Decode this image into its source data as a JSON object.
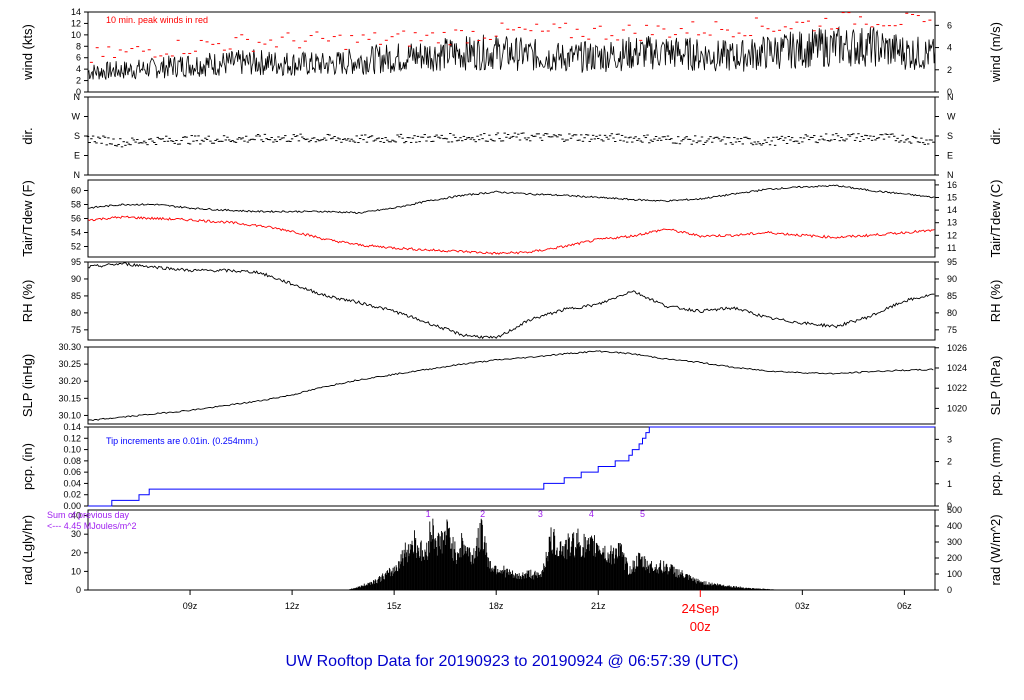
{
  "title": "UW Rooftop Data for 20190923  to  20190924 @ 06:57:39  (UTC)",
  "colors": {
    "axis": "#000000",
    "red": "#ff0000",
    "blue": "#0000ff",
    "purple": "#a020f0",
    "title": "#0000cc"
  },
  "chart_data": [
    {
      "type": "line",
      "panel": "wind",
      "ylabel_left": "wind (kts)",
      "ylabel_right": "wind (m/s)",
      "ylim": [
        0,
        14
      ],
      "yticks_left": [
        "0",
        "2",
        "4",
        "6",
        "8",
        "10",
        "12",
        "14"
      ],
      "yticks_right": [
        "0",
        "2",
        "4",
        "6"
      ],
      "annotation": "10 min. peak winds in red",
      "series": [
        {
          "name": "wind",
          "x": [
            6.0,
            7.0,
            8.0,
            9.0,
            10.0,
            11.0,
            12.0,
            13.0,
            14.0,
            15.0,
            16.0,
            17.0,
            18.0,
            19.0,
            20.0,
            21.0,
            22.0,
            23.0,
            24.0,
            25.0,
            26.0,
            27.0,
            28.0,
            29.0,
            30.0,
            30.9
          ],
          "values": [
            3.5,
            3.8,
            4.2,
            4.8,
            5.0,
            5.2,
            5.0,
            4.8,
            5.5,
            6.0,
            6.5,
            6.8,
            7.0,
            6.5,
            6.0,
            6.2,
            6.8,
            7.0,
            6.5,
            6.2,
            7.0,
            7.5,
            8.0,
            8.0,
            7.0,
            6.5
          ]
        },
        {
          "name": "peak",
          "x": [
            6.0,
            8.0,
            10.0,
            12.0,
            14.0,
            16.0,
            18.0,
            20.0,
            22.0,
            24.0,
            26.0,
            27.5,
            28.5,
            30.0,
            30.9
          ],
          "values": [
            6.0,
            7.5,
            8.5,
            9.0,
            9.0,
            9.5,
            10.5,
            10.5,
            10.5,
            11.0,
            11.5,
            12.0,
            13.0,
            12.5,
            11.0
          ]
        }
      ]
    },
    {
      "type": "scatter",
      "panel": "dir",
      "ylabel_left": "dir.",
      "ylabel_right": "dir.",
      "yticks": [
        "N",
        "E",
        "S",
        "W",
        "N"
      ],
      "series": [
        {
          "name": "direction",
          "x": [
            6.0,
            7.0,
            8.0,
            10.0,
            12.0,
            14.0,
            16.0,
            18.0,
            20.0,
            22.0,
            24.0,
            26.0,
            28.0,
            30.0,
            30.9
          ],
          "values": [
            170,
            150,
            160,
            165,
            170,
            165,
            170,
            175,
            175,
            170,
            160,
            155,
            175,
            170,
            155
          ]
        }
      ]
    },
    {
      "type": "line",
      "panel": "temp",
      "ylabel_left": "Tair/Tdew (F)",
      "ylabel_right": "Tair/Tdew (C)",
      "ylim": [
        50.5,
        61.5
      ],
      "yticks_left": [
        "52",
        "54",
        "56",
        "58",
        "60"
      ],
      "yticks_right": [
        "11",
        "12",
        "13",
        "14",
        "15",
        "16"
      ],
      "series": [
        {
          "name": "Tair",
          "x": [
            6.0,
            7.0,
            8.0,
            9.0,
            10.0,
            11.0,
            12.0,
            13.0,
            14.0,
            15.0,
            16.0,
            17.0,
            18.0,
            19.0,
            20.0,
            21.0,
            22.0,
            23.0,
            24.0,
            25.0,
            26.0,
            27.0,
            28.0,
            29.0,
            30.0,
            30.9
          ],
          "values": [
            57.5,
            58.0,
            58.0,
            57.5,
            57.2,
            57.0,
            57.0,
            57.0,
            56.8,
            57.5,
            58.5,
            59.3,
            59.8,
            59.5,
            59.3,
            59.0,
            58.7,
            58.5,
            58.8,
            59.5,
            60.2,
            60.5,
            60.7,
            60.0,
            59.5,
            59.0
          ]
        },
        {
          "name": "Tdew",
          "x": [
            6.0,
            7.0,
            8.0,
            9.0,
            10.0,
            11.0,
            12.0,
            13.0,
            14.0,
            15.0,
            16.0,
            17.0,
            18.0,
            19.0,
            20.0,
            21.0,
            22.0,
            23.0,
            24.0,
            25.0,
            26.0,
            27.0,
            28.0,
            29.0,
            30.0,
            30.9
          ],
          "values": [
            55.8,
            56.2,
            56.0,
            55.8,
            55.5,
            55.0,
            54.2,
            53.0,
            52.2,
            51.8,
            51.5,
            51.3,
            51.0,
            51.2,
            52.0,
            53.0,
            53.5,
            54.5,
            53.5,
            53.6,
            54.0,
            53.6,
            53.3,
            53.6,
            54.0,
            54.3
          ]
        }
      ]
    },
    {
      "type": "line",
      "panel": "rh",
      "ylabel_left": "RH (%)",
      "ylabel_right": "RH (%)",
      "ylim": [
        72,
        95
      ],
      "yticks": [
        "75",
        "80",
        "85",
        "90",
        "95"
      ],
      "series": [
        {
          "name": "RH",
          "x": [
            6.0,
            7.0,
            8.0,
            9.0,
            10.0,
            11.0,
            12.0,
            13.0,
            14.0,
            15.0,
            16.0,
            17.0,
            18.0,
            19.0,
            20.0,
            21.0,
            22.0,
            23.0,
            24.0,
            25.0,
            26.0,
            27.0,
            28.0,
            29.0,
            30.0,
            30.9
          ],
          "values": [
            93.5,
            94.5,
            93.5,
            92.5,
            92.5,
            92.0,
            88.5,
            85.0,
            83.0,
            80.5,
            77.0,
            73.5,
            72.5,
            78.0,
            81.0,
            82.5,
            86.5,
            82.0,
            80.5,
            81.5,
            78.5,
            77.0,
            76.0,
            79.0,
            83.5,
            85.5
          ]
        }
      ]
    },
    {
      "type": "line",
      "panel": "slp",
      "ylabel_left": "SLP (inHg)",
      "ylabel_right": "SLP (hPa)",
      "ylim": [
        30.075,
        30.3
      ],
      "yticks_left": [
        "30.10",
        "30.15",
        "30.20",
        "30.25",
        "30.30"
      ],
      "yticks_right": [
        "1020",
        "1022",
        "1024",
        "1026"
      ],
      "series": [
        {
          "name": "SLP",
          "x": [
            6.0,
            7.0,
            8.0,
            9.0,
            10.0,
            11.0,
            12.0,
            13.0,
            14.0,
            15.0,
            16.0,
            17.0,
            18.0,
            19.0,
            20.0,
            21.0,
            22.0,
            23.0,
            24.0,
            25.0,
            26.0,
            27.0,
            28.0,
            29.0,
            30.0,
            30.9
          ],
          "values": [
            30.085,
            30.095,
            30.105,
            30.115,
            30.128,
            30.142,
            30.16,
            30.185,
            30.205,
            30.22,
            30.235,
            30.25,
            30.262,
            30.27,
            30.28,
            30.288,
            30.28,
            30.265,
            30.255,
            30.24,
            30.23,
            30.225,
            30.222,
            30.228,
            30.232,
            30.234
          ]
        }
      ]
    },
    {
      "type": "line",
      "panel": "pcp",
      "ylabel_left": "pcp. (in)",
      "ylabel_right": "pcp. (mm)",
      "ylim": [
        0,
        0.14
      ],
      "yticks_left": [
        "0.00",
        "0.02",
        "0.04",
        "0.06",
        "0.08",
        "0.10",
        "0.12",
        "0.14"
      ],
      "yticks_right": [
        "0",
        "1",
        "2",
        "3"
      ],
      "annotation": "Tip increments are 0.01in. (0.254mm.)",
      "series": [
        {
          "name": "pcp",
          "x": [
            6.0,
            6.7,
            7.5,
            7.8,
            19.1,
            19.4,
            20.0,
            20.5,
            21.0,
            21.5,
            21.9,
            22.0,
            22.2,
            22.3,
            22.4,
            22.5,
            30.9
          ],
          "values": [
            0.0,
            0.01,
            0.02,
            0.03,
            0.03,
            0.04,
            0.05,
            0.06,
            0.07,
            0.08,
            0.09,
            0.1,
            0.11,
            0.12,
            0.13,
            0.14,
            0.14
          ]
        }
      ]
    },
    {
      "type": "area",
      "panel": "rad",
      "ylabel_left": "rad (Lgly/hr)",
      "ylabel_right": "rad (W/m^2)",
      "ylim": [
        0,
        43
      ],
      "yticks_left": [
        "0",
        "10",
        "20",
        "30",
        "40"
      ],
      "yticks_right": [
        "0",
        "100",
        "200",
        "300",
        "400",
        "500"
      ],
      "annotations": [
        "Sum of previous day",
        "<--- 4.45 MJoules/m^2"
      ],
      "markers": [
        "1",
        "2",
        "3",
        "4",
        "5"
      ],
      "series": [
        {
          "name": "radiation",
          "x": [
            13.6,
            14.0,
            14.5,
            15.0,
            15.3,
            15.6,
            15.9,
            16.1,
            16.3,
            16.6,
            16.8,
            17.0,
            17.3,
            17.6,
            17.8,
            18.2,
            18.6,
            19.0,
            19.3,
            19.6,
            20.0,
            20.4,
            20.7,
            21.0,
            21.3,
            21.6,
            21.9,
            22.2,
            22.6,
            23.0,
            23.4,
            23.8,
            24.2,
            24.6,
            25.0,
            25.5,
            26.0,
            26.4
          ],
          "values": [
            0,
            2,
            6,
            12,
            22,
            30,
            20,
            38,
            28,
            35,
            22,
            28,
            20,
            36,
            15,
            12,
            8,
            10,
            8,
            30,
            25,
            30,
            25,
            28,
            20,
            25,
            12,
            18,
            14,
            14,
            10,
            6,
            4,
            3,
            2,
            1,
            0.5,
            0
          ]
        }
      ]
    }
  ],
  "xaxis": {
    "start_hour": 6.0,
    "end_hour": 30.9,
    "ticks": [
      {
        "hour": 9,
        "label": "09z"
      },
      {
        "hour": 12,
        "label": "12z"
      },
      {
        "hour": 15,
        "label": "15z"
      },
      {
        "hour": 18,
        "label": "18z"
      },
      {
        "hour": 21,
        "label": "21z"
      },
      {
        "hour": 27,
        "label": "03z"
      },
      {
        "hour": 30,
        "label": "06z"
      }
    ],
    "day_marker": {
      "hour": 24,
      "date": "24Sep",
      "label": "00z"
    }
  }
}
